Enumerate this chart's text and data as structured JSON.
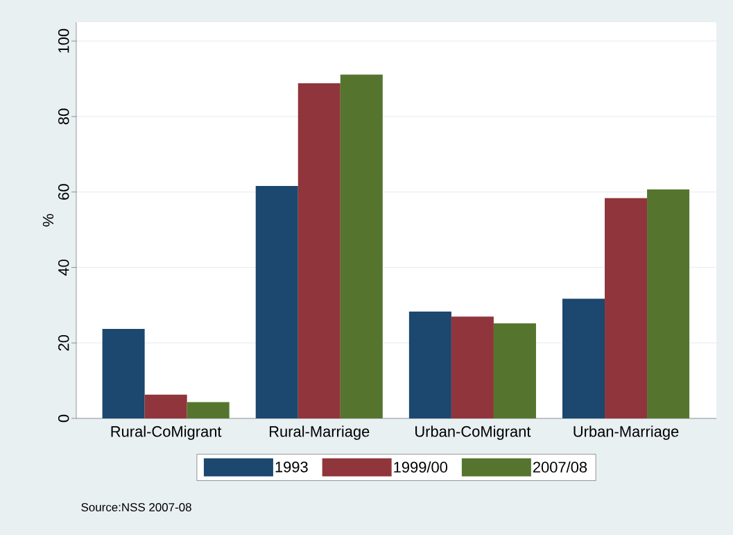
{
  "chart_data": {
    "type": "bar",
    "ylabel": "%",
    "categories": [
      "Rural-CoMigrant",
      "Rural-Marriage",
      "Urban-CoMigrant",
      "Urban-Marriage"
    ],
    "series": [
      {
        "name": "1993",
        "color": "#1c476e",
        "values": [
          23.7,
          61.6,
          28.3,
          31.7
        ]
      },
      {
        "name": "1999/00",
        "color": "#90353b",
        "values": [
          6.3,
          88.8,
          27.0,
          58.4
        ]
      },
      {
        "name": "2007/08",
        "color": "#55752f",
        "values": [
          4.3,
          91.1,
          25.2,
          60.7
        ]
      }
    ],
    "ylim": [
      0,
      105
    ],
    "yticks": [
      0,
      20,
      40,
      60,
      80,
      100
    ],
    "grid": "y",
    "legend": "bottom",
    "annotations": [
      "Source:NSS 2007-08"
    ]
  }
}
